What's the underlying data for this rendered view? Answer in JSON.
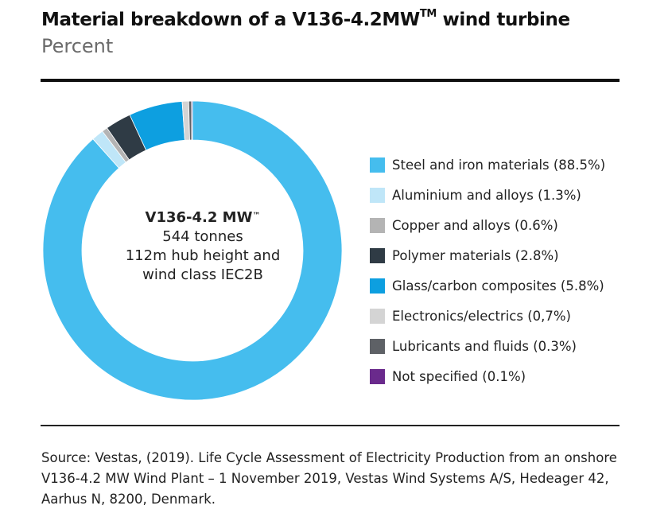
{
  "header": {
    "title": "Material breakdown of a V136-4.2MW",
    "title_tm": "TM",
    "title_end": " wind turbine",
    "subtitle": "Percent"
  },
  "center_text": {
    "model": "V136-4.2 MW",
    "tm": "™",
    "line1": "544 tonnes",
    "line2": "112m hub height and",
    "line3": "wind class IEC2B"
  },
  "legend_labels": [
    "Steel and iron materials (88.5%)",
    "Aluminium and alloys (1.3%)",
    "Copper and alloys (0.6%)",
    "Polymer materials (2.8%)",
    "Glass/carbon composites (5.8%)",
    "Electronics/electrics (0,7%)",
    "Lubricants and fluids (0.3%)",
    "Not specified (0.1%)"
  ],
  "chart_data": {
    "type": "pie",
    "title": "Material breakdown of a V136-4.2MW™ wind turbine",
    "subtitle": "Percent",
    "categories": [
      "Steel and iron materials",
      "Aluminium and alloys",
      "Copper and alloys",
      "Polymer materials",
      "Glass/carbon composites",
      "Electronics/electrics",
      "Lubricants and fluids",
      "Not specified"
    ],
    "values": [
      88.5,
      1.3,
      0.6,
      2.8,
      5.8,
      0.7,
      0.3,
      0.1
    ],
    "colors": [
      "#45bdee",
      "#bfe6f8",
      "#b4b4b4",
      "#2f3b45",
      "#0d9fe0",
      "#d4d4d4",
      "#5e6166",
      "#6a2a8c"
    ],
    "legend_position": "right"
  },
  "source": "Source: Vestas, (2019). Life Cycle Assessment of Electricity Production from an onshore V136-4.2 MW Wind Plant – 1 November 2019, Vestas Wind Systems A/S, Hedeager 42, Aarhus N, 8200, Denmark."
}
